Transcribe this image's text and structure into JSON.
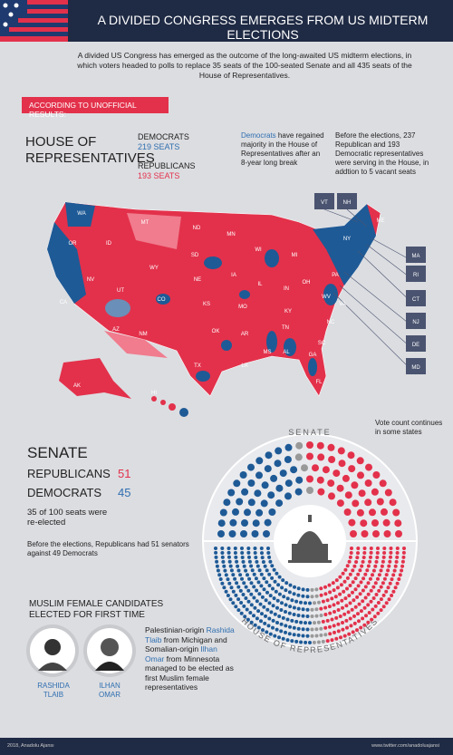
{
  "header": {
    "title": "A DIVIDED CONGRESS EMERGES FROM US MIDTERM ELECTIONS",
    "intro": "A divided US Congress has emerged as the outcome of the long-awaited US midterm elections, in which voters headed to polls to replace 35 seats of the 100-seated Senate and all 435 seats of the House of Representatives."
  },
  "banner": "ACCORDING TO UNOFFICIAL RESULTS:",
  "house": {
    "title": "HOUSE OF REPRESENTATIVES",
    "democrats": {
      "name": "DEMOCRATS",
      "seats": 219,
      "seats_label": "219 SEATS"
    },
    "republicans": {
      "name": "REPUBLICANS",
      "seats": 193,
      "seats_label": "193 SEATS"
    },
    "note_highlight": "Democrats",
    "note_rest": "have regained majority in the House of Representatives after an 8-year long break",
    "before": "Before the elections, 237 Republican and 193 Democratic representatives were serving in the House, in addtion to 5 vacant seats",
    "total": 435
  },
  "map": {
    "labels": [
      "WA",
      "OR",
      "ID",
      "MT",
      "ND",
      "MN",
      "WI",
      "MI",
      "NY",
      "ME",
      "SD",
      "WY",
      "NV",
      "CA",
      "UT",
      "CO",
      "NE",
      "IA",
      "IL",
      "IN",
      "OH",
      "PA",
      "KS",
      "MO",
      "KY",
      "WV",
      "VA",
      "AZ",
      "NM",
      "OK",
      "AR",
      "TN",
      "NC",
      "SC",
      "GA",
      "AL",
      "MS",
      "LA",
      "TX",
      "FL",
      "AK",
      "HI"
    ],
    "callouts": [
      "VT",
      "NH",
      "MA",
      "RI",
      "CT",
      "NJ",
      "DE",
      "MD"
    ]
  },
  "vote_note": "Vote count continues in some states",
  "senate": {
    "title": "SENATE",
    "rows": [
      {
        "party": "REPUBLICANS",
        "seats": 51
      },
      {
        "party": "DEMOCRATS",
        "seats": 45
      }
    ],
    "reelected": "35 of 100 seats were re-elected",
    "before": "Before the elections, Republicans had 51 senators against 49 Democrats",
    "total": 100
  },
  "dot_chart": {
    "senate_label": "SENATE",
    "house_label": "HOUSE OF REPRESENTATIVES"
  },
  "muslim": {
    "title": "MUSLIM FEMALE CANDIDATES ELECTED FOR FIRST TIME",
    "people": [
      "RASHIDA TLAIB",
      "ILHAN OMAR"
    ],
    "text": [
      "Palestinian-origin ",
      "Rashida Tlaib",
      " from Michigan and Somalian-origin ",
      "Ilhan Omar",
      " from Minnesota managed to be elected as first Muslim female representatives"
    ]
  },
  "footer": {
    "left": "2018, Anadolu Ajansı",
    "right": "www.twitter.com/anadoluajansi"
  }
}
